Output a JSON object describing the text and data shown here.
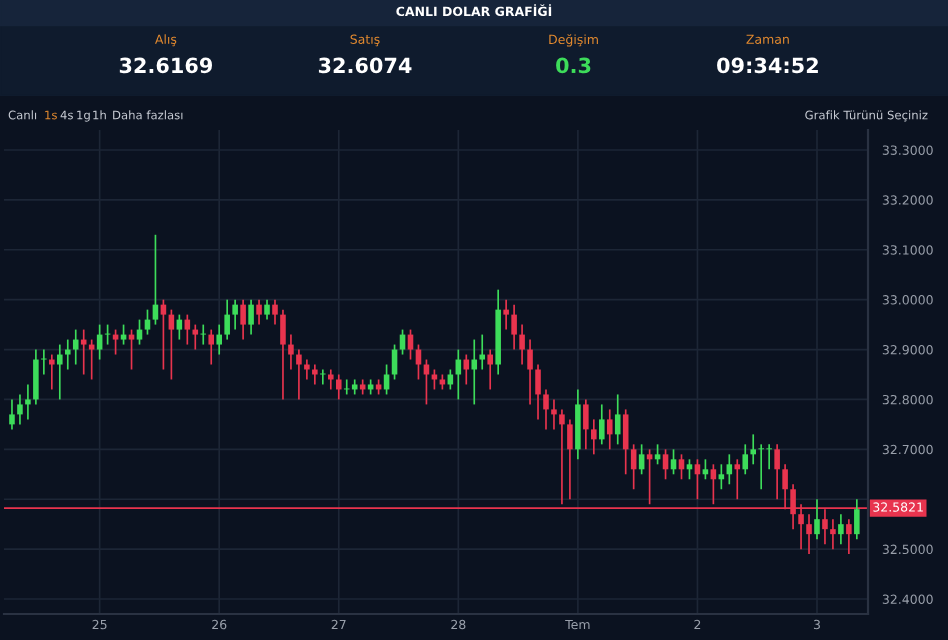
{
  "chart_data": [
    {
      "type": "other",
      "title": "CANLI DOLAR GRAFİĞİ",
      "categories": [
        "Alış",
        "Satış",
        "Değişim",
        "Zaman"
      ],
      "value_labels": [
        "32.6169",
        "32.6074",
        "0.3",
        "09:34:52"
      ]
    },
    {
      "type": "candlestick",
      "annotations": [
        "Canlı",
        "1s",
        "4s",
        "1g",
        "1h",
        "Daha fazlası",
        "Grafik Türünü Seçiniz"
      ],
      "categories": [
        null,
        null,
        null,
        null,
        null,
        null,
        null,
        null,
        null,
        null,
        null,
        "25",
        null,
        null,
        null,
        null,
        null,
        null,
        null,
        null,
        null,
        null,
        null,
        null,
        null,
        null,
        "26",
        null,
        null,
        null,
        null,
        null,
        null,
        null,
        null,
        null,
        null,
        null,
        null,
        null,
        null,
        "27",
        null,
        null,
        null,
        null,
        null,
        null,
        null,
        null,
        null,
        null,
        null,
        null,
        null,
        null,
        "28",
        null,
        null,
        null,
        null,
        null,
        null,
        null,
        null,
        null,
        null,
        null,
        null,
        null,
        null,
        "Tem",
        null,
        null,
        null,
        null,
        null,
        null,
        null,
        null,
        null,
        null,
        null,
        null,
        null,
        null,
        "2",
        null,
        null,
        null,
        null,
        null,
        null,
        null,
        null,
        null,
        null,
        null,
        null,
        null,
        null,
        "3",
        null,
        null,
        null,
        null,
        null
      ],
      "ohlc": [
        [
          32.75,
          32.8,
          32.74,
          32.77
        ],
        [
          32.77,
          32.81,
          32.75,
          32.79
        ],
        [
          32.79,
          32.83,
          32.76,
          32.8
        ],
        [
          32.8,
          32.9,
          32.79,
          32.88
        ],
        [
          32.88,
          32.9,
          32.85,
          32.88
        ],
        [
          32.88,
          32.89,
          32.82,
          32.87
        ],
        [
          32.87,
          32.91,
          32.8,
          32.89
        ],
        [
          32.89,
          32.92,
          32.86,
          32.9
        ],
        [
          32.9,
          32.94,
          32.87,
          32.92
        ],
        [
          32.92,
          32.94,
          32.85,
          32.91
        ],
        [
          32.91,
          32.92,
          32.84,
          32.9
        ],
        [
          32.9,
          32.95,
          32.88,
          32.93
        ],
        [
          32.93,
          32.95,
          32.91,
          32.93
        ],
        [
          32.93,
          32.94,
          32.89,
          32.92
        ],
        [
          32.92,
          32.95,
          32.91,
          32.93
        ],
        [
          32.93,
          32.94,
          32.86,
          32.92
        ],
        [
          32.92,
          32.96,
          32.91,
          32.94
        ],
        [
          32.94,
          32.98,
          32.93,
          32.96
        ],
        [
          32.96,
          33.13,
          32.95,
          32.99
        ],
        [
          32.99,
          33.0,
          32.86,
          32.97
        ],
        [
          32.97,
          32.98,
          32.84,
          32.94
        ],
        [
          32.94,
          32.97,
          32.92,
          32.96
        ],
        [
          32.96,
          32.97,
          32.91,
          32.94
        ],
        [
          32.94,
          32.95,
          32.9,
          32.93
        ],
        [
          32.93,
          32.95,
          32.91,
          32.93
        ],
        [
          32.93,
          32.94,
          32.87,
          32.91
        ],
        [
          32.91,
          32.95,
          32.89,
          32.93
        ],
        [
          32.93,
          33.0,
          32.92,
          32.97
        ],
        [
          32.97,
          33.0,
          32.94,
          32.99
        ],
        [
          32.99,
          33.0,
          32.92,
          32.95
        ],
        [
          32.95,
          33.0,
          32.93,
          32.99
        ],
        [
          32.99,
          33.0,
          32.95,
          32.97
        ],
        [
          32.97,
          33.0,
          32.96,
          32.99
        ],
        [
          32.99,
          33.0,
          32.95,
          32.97
        ],
        [
          32.97,
          32.98,
          32.8,
          32.91
        ],
        [
          32.91,
          32.93,
          32.86,
          32.89
        ],
        [
          32.89,
          32.9,
          32.8,
          32.87
        ],
        [
          32.87,
          32.88,
          32.84,
          32.86
        ],
        [
          32.86,
          32.87,
          32.83,
          32.85
        ],
        [
          32.85,
          32.86,
          32.83,
          32.85
        ],
        [
          32.85,
          32.86,
          32.82,
          32.84
        ],
        [
          32.84,
          32.85,
          32.8,
          32.82
        ],
        [
          32.82,
          32.84,
          32.81,
          32.82
        ],
        [
          32.82,
          32.84,
          32.81,
          32.83
        ],
        [
          32.83,
          32.84,
          32.81,
          32.82
        ],
        [
          32.82,
          32.84,
          32.81,
          32.83
        ],
        [
          32.83,
          32.84,
          32.81,
          32.82
        ],
        [
          32.82,
          32.87,
          32.81,
          32.85
        ],
        [
          32.85,
          32.91,
          32.84,
          32.9
        ],
        [
          32.9,
          32.94,
          32.89,
          32.93
        ],
        [
          32.93,
          32.94,
          32.88,
          32.9
        ],
        [
          32.9,
          32.91,
          32.84,
          32.87
        ],
        [
          32.87,
          32.88,
          32.79,
          32.85
        ],
        [
          32.85,
          32.86,
          32.82,
          32.84
        ],
        [
          32.84,
          32.85,
          32.82,
          32.83
        ],
        [
          32.83,
          32.86,
          32.82,
          32.85
        ],
        [
          32.85,
          32.9,
          32.8,
          32.88
        ],
        [
          32.88,
          32.89,
          32.83,
          32.86
        ],
        [
          32.86,
          32.92,
          32.79,
          32.88
        ],
        [
          32.88,
          32.93,
          32.86,
          32.89
        ],
        [
          32.89,
          32.9,
          32.82,
          32.87
        ],
        [
          32.87,
          33.02,
          32.85,
          32.98
        ],
        [
          32.98,
          33.0,
          32.94,
          32.97
        ],
        [
          32.97,
          32.99,
          32.9,
          32.93
        ],
        [
          32.93,
          32.95,
          32.87,
          32.9
        ],
        [
          32.9,
          32.92,
          32.79,
          32.86
        ],
        [
          32.86,
          32.87,
          32.76,
          32.81
        ],
        [
          32.81,
          32.82,
          32.74,
          32.78
        ],
        [
          32.78,
          32.8,
          32.74,
          32.77
        ],
        [
          32.77,
          32.78,
          32.59,
          32.75
        ],
        [
          32.75,
          32.76,
          32.6,
          32.7
        ],
        [
          32.7,
          32.82,
          32.68,
          32.79
        ],
        [
          32.79,
          32.8,
          32.7,
          32.74
        ],
        [
          32.74,
          32.76,
          32.69,
          32.72
        ],
        [
          32.72,
          32.79,
          32.71,
          32.76
        ],
        [
          32.76,
          32.78,
          32.7,
          32.73
        ],
        [
          32.73,
          32.81,
          32.71,
          32.77
        ],
        [
          32.77,
          32.78,
          32.65,
          32.7
        ],
        [
          32.7,
          32.71,
          32.62,
          32.66
        ],
        [
          32.66,
          32.71,
          32.65,
          32.69
        ],
        [
          32.69,
          32.7,
          32.59,
          32.68
        ],
        [
          32.68,
          32.71,
          32.67,
          32.69
        ],
        [
          32.69,
          32.7,
          32.64,
          32.66
        ],
        [
          32.66,
          32.7,
          32.65,
          32.68
        ],
        [
          32.68,
          32.69,
          32.64,
          32.66
        ],
        [
          32.66,
          32.68,
          32.64,
          32.67
        ],
        [
          32.67,
          32.68,
          32.6,
          32.65
        ],
        [
          32.65,
          32.68,
          32.64,
          32.66
        ],
        [
          32.66,
          32.67,
          32.59,
          32.64
        ],
        [
          32.64,
          32.67,
          32.62,
          32.65
        ],
        [
          32.65,
          32.69,
          32.63,
          32.67
        ],
        [
          32.67,
          32.68,
          32.6,
          32.66
        ],
        [
          32.66,
          32.71,
          32.65,
          32.69
        ],
        [
          32.69,
          32.73,
          32.67,
          32.7
        ],
        [
          32.7,
          32.71,
          32.62,
          32.7
        ],
        [
          32.7,
          32.71,
          32.66,
          32.7
        ],
        [
          32.7,
          32.71,
          32.6,
          32.66
        ],
        [
          32.66,
          32.67,
          32.58,
          32.62
        ],
        [
          32.62,
          32.63,
          32.54,
          32.57
        ],
        [
          32.57,
          32.59,
          32.5,
          32.55
        ],
        [
          32.55,
          32.57,
          32.49,
          32.53
        ],
        [
          32.53,
          32.6,
          32.52,
          32.56
        ],
        [
          32.56,
          32.58,
          32.51,
          32.54
        ],
        [
          32.54,
          32.56,
          32.5,
          32.53
        ],
        [
          32.53,
          32.57,
          32.51,
          32.55
        ],
        [
          32.55,
          32.56,
          32.49,
          32.53
        ],
        [
          32.53,
          32.6,
          32.52,
          32.58
        ]
      ],
      "ylim": [
        32.37,
        33.34
      ],
      "yticks": [
        {
          "value": 32.4,
          "label": "32.4000"
        },
        {
          "value": 32.5,
          "label": "32.5000"
        },
        {
          "value": 32.6,
          "label": null
        },
        {
          "value": 32.7,
          "label": "32.7000"
        },
        {
          "value": 32.8,
          "label": "32.8000"
        },
        {
          "value": 32.9,
          "label": "32.9000"
        },
        {
          "value": 33.0,
          "label": "33.0000"
        },
        {
          "value": 33.1,
          "label": "33.1000"
        },
        {
          "value": 33.2,
          "label": "33.2000"
        },
        {
          "value": 33.3,
          "label": "33.3000"
        }
      ],
      "grid": true,
      "ref_lines": [
        {
          "axis": "y",
          "value": 32.5821,
          "label": "32.5821",
          "color": "#e8344e"
        }
      ]
    }
  ]
}
